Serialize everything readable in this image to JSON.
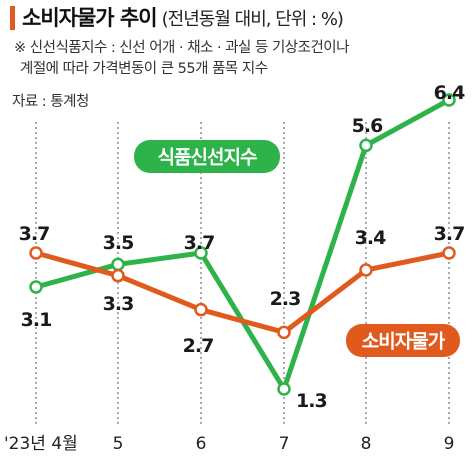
{
  "header": {
    "title": "소비자물가 추이",
    "subtitle": "(전년동월 대비, 단위 : %)"
  },
  "note": {
    "line1": "※ 신선식품지수 : 신선 어개 · 채소 · 과실 등 기상조건이나",
    "line2": "계절에 따라 가격변동이 큰 55개 품목 지수"
  },
  "source": "자료 : 통계청",
  "colors": {
    "consumer_price": "#e05a1e",
    "fresh_food": "#2db34a",
    "accent_bar": "#e05a1e"
  },
  "chart_data": {
    "type": "line",
    "categories": [
      "'23년 4월",
      "5",
      "6",
      "7",
      "8",
      "9"
    ],
    "series": [
      {
        "name": "식품신선지수",
        "values": [
          3.1,
          3.5,
          3.7,
          1.3,
          5.6,
          6.4
        ],
        "color": "#2db34a"
      },
      {
        "name": "소비자물가",
        "values": [
          3.7,
          3.3,
          2.7,
          2.3,
          3.4,
          3.7
        ],
        "color": "#e05a1e"
      }
    ],
    "data_labels": {
      "식품신선지수": [
        "3.1",
        "3.5",
        "3.7",
        "1.3",
        "5.6",
        "6.4"
      ],
      "소비자물가": [
        "3.7",
        "3.3",
        "2.7",
        "2.3",
        "3.4",
        "3.7"
      ]
    },
    "ylim": [
      1.0,
      6.7
    ],
    "grid": false,
    "legend": "inline labels"
  }
}
